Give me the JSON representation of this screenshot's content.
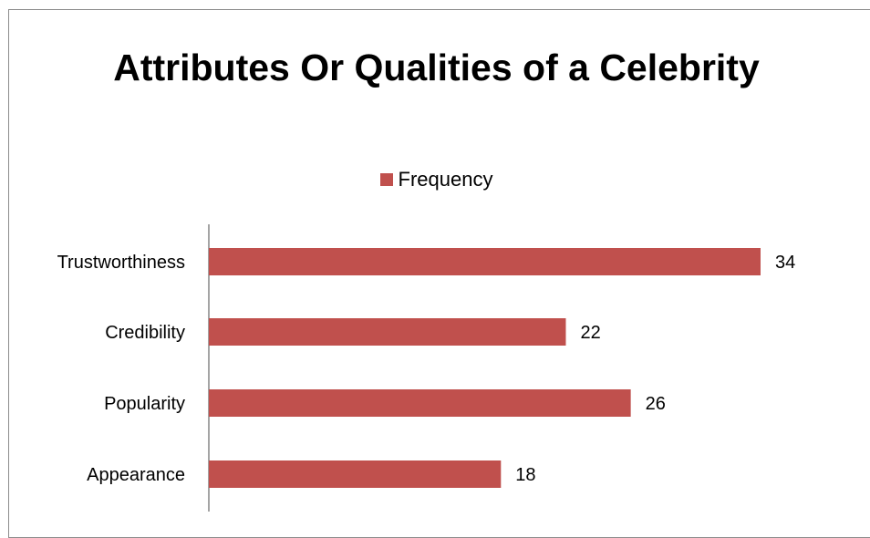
{
  "chart_data": {
    "type": "bar",
    "orientation": "horizontal",
    "title": "Attributes Or Qualities of a Celebrity",
    "categories": [
      "Trustworthiness",
      "Credibility",
      "Popularity",
      "Appearance"
    ],
    "series": [
      {
        "name": "Frequency",
        "values": [
          34,
          22,
          26,
          18
        ],
        "color": "#C0504D"
      }
    ],
    "data_labels": [
      "34",
      "22",
      "26",
      "18"
    ],
    "xlim": [
      0,
      34
    ],
    "grid": false,
    "legend_position": "top",
    "axis_color": "#868686"
  }
}
